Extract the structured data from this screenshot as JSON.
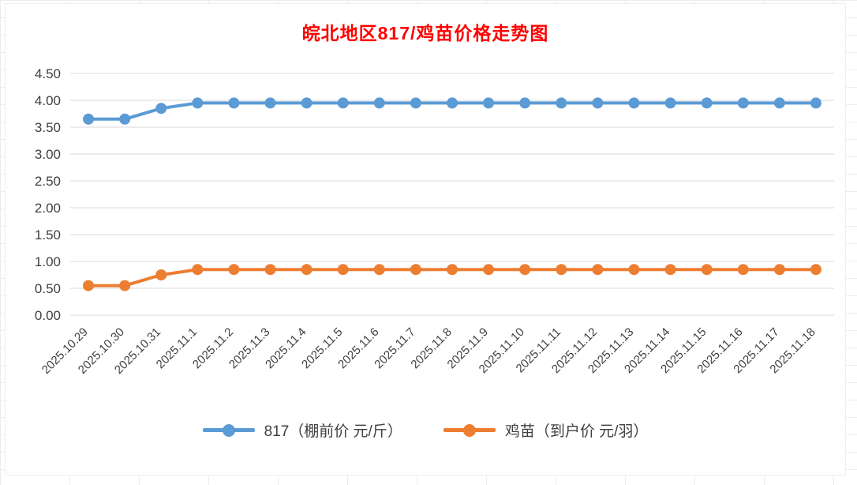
{
  "chart_data": {
    "type": "line",
    "title": "皖北地区817/鸡苗价格走势图",
    "title_color": "#FF0000",
    "categories": [
      "2025.10.29",
      "2025.10.30",
      "2025.10.31",
      "2025.11.1",
      "2025.11.2",
      "2025.11.3",
      "2025.11.4",
      "2025.11.5",
      "2025.11.6",
      "2025.11.7",
      "2025.11.8",
      "2025.11.9",
      "2025.11.10",
      "2025.11.11",
      "2025.11.12",
      "2025.11.13",
      "2025.11.14",
      "2025.11.15",
      "2025.11.16",
      "2025.11.17",
      "2025.11.18"
    ],
    "series": [
      {
        "name": "817（棚前价 元/斤）",
        "color": "#5B9BD5",
        "values": [
          3.65,
          3.65,
          3.85,
          3.95,
          3.95,
          3.95,
          3.95,
          3.95,
          3.95,
          3.95,
          3.95,
          3.95,
          3.95,
          3.95,
          3.95,
          3.95,
          3.95,
          3.95,
          3.95,
          3.95,
          3.95
        ]
      },
      {
        "name": "鸡苗（到户价 元/羽）",
        "color": "#ED7D31",
        "values": [
          0.55,
          0.55,
          0.75,
          0.85,
          0.85,
          0.85,
          0.85,
          0.85,
          0.85,
          0.85,
          0.85,
          0.85,
          0.85,
          0.85,
          0.85,
          0.85,
          0.85,
          0.85,
          0.85,
          0.85,
          0.85
        ]
      }
    ],
    "ylim": [
      0,
      4.5
    ],
    "ytick_step": 0.5,
    "ytick_format": "2dp",
    "ytick_labels": [
      "0.00",
      "0.50",
      "1.00",
      "1.50",
      "2.00",
      "2.50",
      "3.00",
      "3.50",
      "4.00",
      "4.50"
    ],
    "grid": "horizontal",
    "gridline_color": "#D9D9D9",
    "axis_label_color": "#404040",
    "legend_position": "bottom",
    "xlabel": "",
    "ylabel": ""
  }
}
